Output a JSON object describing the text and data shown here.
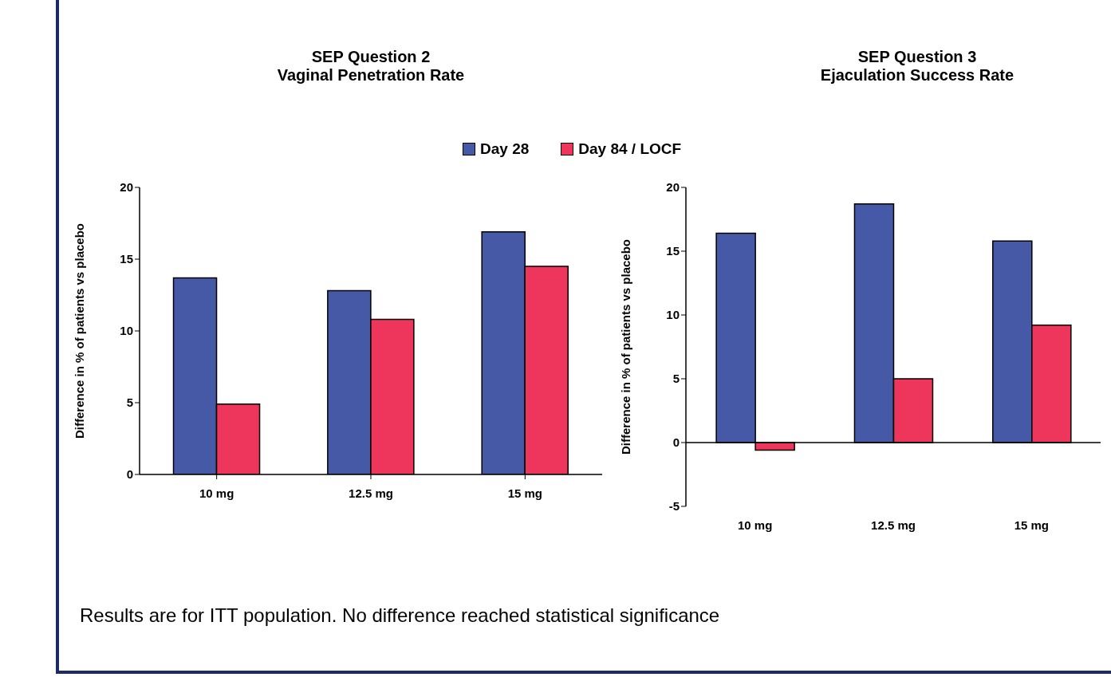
{
  "chart_data": [
    {
      "type": "bar",
      "title": "SEP Question 2\nVaginal Penetration Rate",
      "ylabel": "Difference in % of patients vs placebo",
      "categories": [
        "10 mg",
        "12.5 mg",
        "15 mg"
      ],
      "series": [
        {
          "name": "Day 28",
          "color": "#4659a7",
          "values": [
            13.7,
            12.8,
            16.9
          ]
        },
        {
          "name": "Day 84 / LOCF",
          "color": "#ee355b",
          "values": [
            4.9,
            10.8,
            14.5
          ]
        }
      ],
      "ylim": [
        0,
        20
      ],
      "yticks": [
        0,
        5,
        10,
        15,
        20
      ],
      "grid": false,
      "legend": "top"
    },
    {
      "type": "bar",
      "title": "SEP Question 3\nEjaculation Success Rate",
      "ylabel": "Difference in % of patients vs placebo",
      "categories": [
        "10 mg",
        "12.5 mg",
        "15 mg"
      ],
      "series": [
        {
          "color": "#4659a7",
          "values": [
            16.4,
            18.7,
            15.8
          ]
        },
        {
          "color": "#ee355b",
          "values": [
            -0.6,
            5.0,
            9.2
          ]
        }
      ],
      "ylim": [
        -5,
        20
      ],
      "yticks": [
        -5,
        0,
        5,
        10,
        15,
        20
      ],
      "ref_lines": [
        {
          "axis": "y",
          "value": 0,
          "color": "#000000"
        }
      ],
      "annotations": [
        "Results are for ITT population. No difference reached statistical significance"
      ]
    }
  ]
}
